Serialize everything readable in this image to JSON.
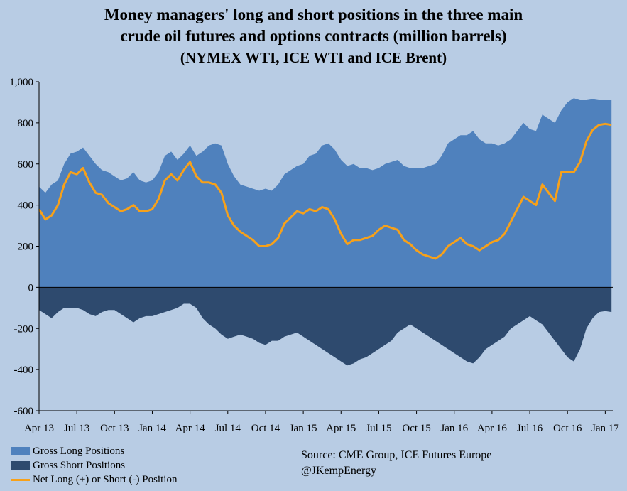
{
  "title": {
    "line1": "Money managers' long and short positions in the three main",
    "line2": "crude oil futures and options contracts (million barrels)",
    "line3": "(NYMEX WTI, ICE WTI and ICE Brent)"
  },
  "source": {
    "line1": "Source:  CME Group, ICE Futures Europe",
    "line2": "@JKempEnergy"
  },
  "colors": {
    "long": "#4F81BD",
    "short": "#2E4A6E",
    "net": "#F7A11A",
    "background": "#B8CCE4"
  },
  "chart_data": {
    "type": "area",
    "ylim": [
      -600,
      1000
    ],
    "yticks": [
      1000,
      800,
      600,
      400,
      200,
      0,
      -200,
      -400,
      -600
    ],
    "ytick_labels": [
      "1,000",
      "800",
      "600",
      "400",
      "200",
      "0",
      "-200",
      "-400",
      "-600"
    ],
    "xlim": [
      0,
      45.6
    ],
    "xtick_labels": [
      "Apr 13",
      "Jul 13",
      "Oct 13",
      "Jan 14",
      "Apr 14",
      "Jul 14",
      "Oct 14",
      "Jan 15",
      "Apr 15",
      "Jul 15",
      "Oct 15",
      "Jan 16",
      "Apr 16",
      "Jul 16",
      "Oct 16",
      "Jan 17"
    ],
    "xtick_pos": [
      0,
      3,
      6,
      9,
      12,
      15,
      18,
      21,
      24,
      27,
      30,
      33,
      36,
      39,
      42,
      45
    ],
    "x": [
      0,
      0.5,
      1,
      1.5,
      2,
      2.5,
      3,
      3.5,
      4,
      4.5,
      5,
      5.5,
      6,
      6.5,
      7,
      7.5,
      8,
      8.5,
      9,
      9.5,
      10,
      10.5,
      11,
      11.5,
      12,
      12.5,
      13,
      13.5,
      14,
      14.5,
      15,
      15.5,
      16,
      16.5,
      17,
      17.5,
      18,
      18.5,
      19,
      19.5,
      20,
      20.5,
      21,
      21.5,
      22,
      22.5,
      23,
      23.5,
      24,
      24.5,
      25,
      25.5,
      26,
      26.5,
      27,
      27.5,
      28,
      28.5,
      29,
      29.5,
      30,
      30.5,
      31,
      31.5,
      32,
      32.5,
      33,
      33.5,
      34,
      34.5,
      35,
      35.5,
      36,
      36.5,
      37,
      37.5,
      38,
      38.5,
      39,
      39.5,
      40,
      40.5,
      41,
      41.5,
      42,
      42.5,
      43,
      43.5,
      44,
      44.5,
      45,
      45.5
    ],
    "series": [
      {
        "name": "Gross Long Positions",
        "values": [
          490,
          460,
          500,
          520,
          600,
          650,
          660,
          680,
          640,
          600,
          570,
          560,
          540,
          520,
          530,
          560,
          520,
          510,
          520,
          560,
          640,
          660,
          620,
          650,
          690,
          640,
          660,
          690,
          700,
          690,
          600,
          540,
          500,
          490,
          480,
          470,
          480,
          470,
          500,
          550,
          570,
          590,
          600,
          640,
          650,
          690,
          700,
          670,
          620,
          590,
          600,
          580,
          580,
          570,
          580,
          600,
          610,
          620,
          590,
          580,
          580,
          580,
          590,
          600,
          640,
          700,
          720,
          740,
          740,
          760,
          720,
          700,
          700,
          690,
          700,
          720,
          760,
          800,
          770,
          760,
          840,
          820,
          800,
          860,
          900,
          920,
          910,
          910,
          915,
          910,
          910,
          910
        ]
      },
      {
        "name": "Gross Short Positions",
        "values": [
          -110,
          -130,
          -150,
          -120,
          -100,
          -100,
          -100,
          -110,
          -130,
          -140,
          -120,
          -110,
          -110,
          -130,
          -150,
          -170,
          -150,
          -140,
          -140,
          -130,
          -120,
          -110,
          -100,
          -80,
          -80,
          -100,
          -150,
          -180,
          -200,
          -230,
          -250,
          -240,
          -230,
          -240,
          -250,
          -270,
          -280,
          -260,
          -260,
          -240,
          -230,
          -220,
          -240,
          -260,
          -280,
          -300,
          -320,
          -340,
          -360,
          -380,
          -370,
          -350,
          -340,
          -320,
          -300,
          -280,
          -260,
          -220,
          -200,
          -180,
          -200,
          -220,
          -240,
          -260,
          -280,
          -300,
          -320,
          -340,
          -360,
          -370,
          -340,
          -300,
          -280,
          -260,
          -240,
          -200,
          -180,
          -160,
          -140,
          -160,
          -180,
          -220,
          -260,
          -300,
          -340,
          -360,
          -300,
          -200,
          -150,
          -120,
          -115,
          -120
        ]
      },
      {
        "name": "Net Long (+) or Short (-) Position",
        "values": [
          380,
          330,
          350,
          400,
          500,
          560,
          550,
          580,
          510,
          460,
          450,
          410,
          390,
          370,
          380,
          400,
          370,
          370,
          380,
          430,
          520,
          550,
          520,
          570,
          610,
          540,
          510,
          510,
          500,
          460,
          350,
          300,
          270,
          250,
          230,
          200,
          200,
          210,
          240,
          310,
          340,
          370,
          360,
          380,
          370,
          390,
          380,
          330,
          260,
          210,
          230,
          230,
          240,
          250,
          280,
          300,
          290,
          280,
          230,
          210,
          180,
          160,
          150,
          140,
          160,
          200,
          220,
          240,
          210,
          200,
          180,
          200,
          220,
          230,
          260,
          320,
          380,
          440,
          420,
          400,
          500,
          460,
          420,
          560,
          560,
          560,
          610,
          710,
          765,
          790,
          795,
          790
        ]
      }
    ],
    "legend_position": "bottom-left",
    "grid": false
  }
}
